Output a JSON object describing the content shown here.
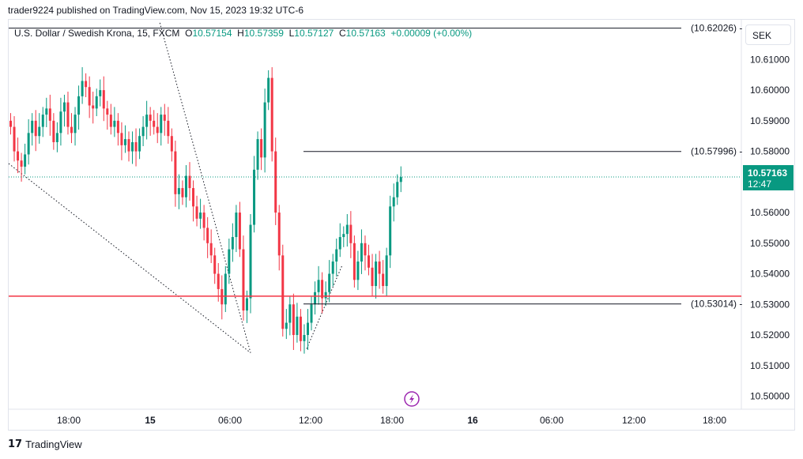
{
  "header": {
    "published": "trader9224 published on TradingView.com, Nov 15, 2023 19:32 UTC-6"
  },
  "symbol": {
    "name": "U.S. Dollar / Swedish Krona, 15, FXCM",
    "o_label": "O",
    "o": "10.57154",
    "h_label": "H",
    "h": "10.57359",
    "l_label": "L",
    "l": "10.57127",
    "c_label": "C",
    "c": "10.57163",
    "change": "+0.00009 (+0.00%)"
  },
  "currency": "SEK",
  "last_price": {
    "value": "10.57163",
    "countdown": "12:47"
  },
  "footer": {
    "brand": "TradingView"
  },
  "colors": {
    "up": "#089981",
    "down": "#f23645",
    "support": "#f23645",
    "level": "#131722"
  },
  "chart_data": {
    "type": "candlestick",
    "title": "U.S. Dollar / Swedish Krona, 15, FXCM",
    "y_ticks": [
      "10.61000",
      "10.60000",
      "10.59000",
      "10.58000",
      "10.56000",
      "10.55000",
      "10.54000",
      "10.53000",
      "10.52000",
      "10.51000",
      "10.50000"
    ],
    "x_ticks": [
      "18:00",
      "15",
      "06:00",
      "12:00",
      "18:00",
      "16",
      "06:00",
      "12:00",
      "18:00"
    ],
    "ylim": [
      10.496,
      10.623
    ],
    "horizontal_levels": [
      {
        "label": "(10.62026)",
        "value": 10.62026
      },
      {
        "label": "(10.57996)",
        "value": 10.57996
      },
      {
        "label": "(10.53014)",
        "value": 10.53014
      }
    ],
    "support_line": 10.5327,
    "last_price_line": 10.57163,
    "candles_close": [
      10.588,
      10.58,
      10.577,
      10.575,
      10.579,
      10.586,
      10.59,
      10.585,
      10.588,
      10.592,
      10.594,
      10.59,
      10.583,
      10.586,
      10.593,
      10.596,
      10.588,
      10.586,
      10.592,
      10.598,
      10.603,
      10.601,
      10.595,
      10.594,
      10.598,
      10.6,
      10.594,
      10.592,
      10.588,
      10.59,
      10.586,
      10.582,
      10.584,
      10.58,
      10.583,
      10.58,
      10.585,
      10.588,
      10.592,
      10.59,
      10.588,
      10.586,
      10.592,
      10.59,
      10.585,
      10.58,
      10.566,
      10.568,
      10.565,
      10.572,
      10.568,
      10.562,
      10.558,
      10.56,
      10.555,
      10.55,
      10.546,
      10.54,
      10.535,
      10.53,
      10.54,
      10.548,
      10.552,
      10.56,
      10.548,
      10.528,
      10.532,
      10.556,
      10.574,
      10.584,
      10.578,
      10.596,
      10.604,
      10.58,
      10.56,
      10.546,
      10.522,
      10.524,
      10.53,
      10.52,
      10.526,
      10.518,
      10.52,
      10.524,
      10.53,
      10.534,
      10.538,
      10.532,
      10.534,
      10.54,
      10.544,
      10.548,
      10.552,
      10.553,
      10.556,
      10.55,
      10.538,
      10.544,
      10.55,
      10.546,
      10.542,
      10.536,
      10.544,
      10.54,
      10.536,
      10.546,
      10.562,
      10.565,
      10.57,
      10.5716
    ]
  }
}
